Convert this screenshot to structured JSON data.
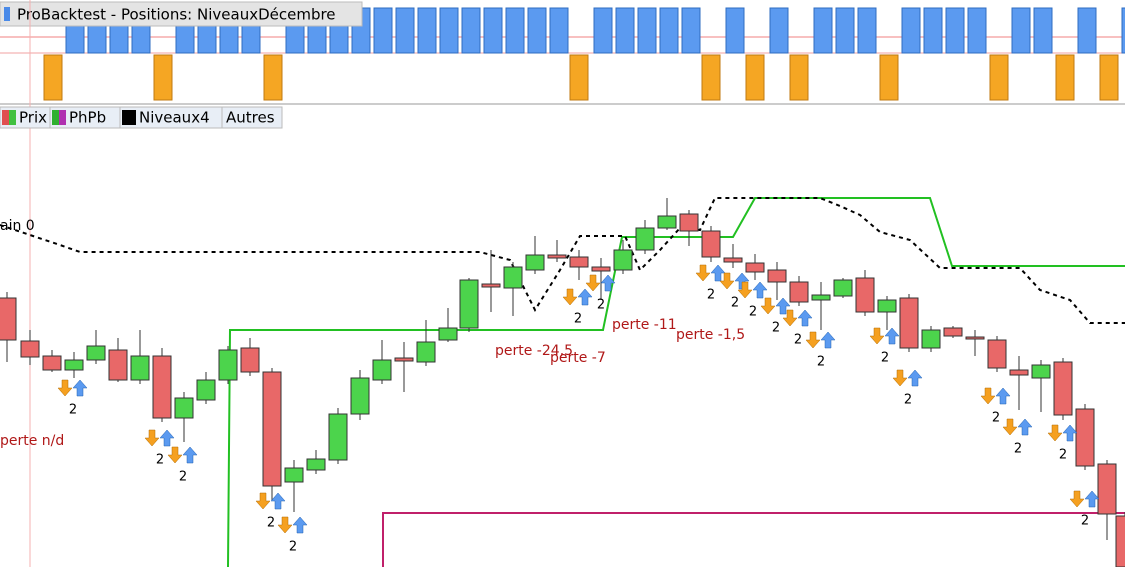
{
  "window_title": "ProBacktest - Positions: NiveauxDécembre",
  "tabs": [
    "Prix",
    "PhPb",
    "Niveaux4",
    "Autres"
  ],
  "annotations": [
    "ain 0",
    "perte n/d",
    "perte -24,5",
    "perte -7",
    "perte -11",
    "perte -1,5"
  ],
  "signal_counts": [
    "2",
    "2",
    "2",
    "2",
    "2",
    "2",
    "2",
    "2",
    "2",
    "2",
    "2",
    "2",
    "2",
    "2",
    "2",
    "2",
    "2",
    "2",
    "2"
  ]
}
